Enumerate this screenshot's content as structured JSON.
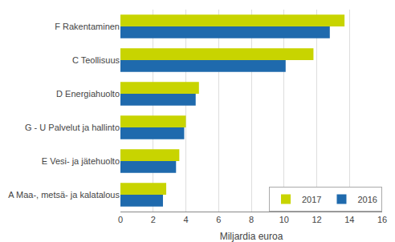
{
  "chart_data": {
    "type": "bar",
    "orientation": "horizontal",
    "categories": [
      "F Rakentaminen",
      "C Teollisuus",
      "D Energiahuolto",
      "G - U Palvelut ja hallinto",
      "E Vesi- ja jätehuolto",
      "A Maa-, metsä- ja kalatalous"
    ],
    "series": [
      {
        "name": "2017",
        "color": "#c8d400",
        "values": [
          13.7,
          11.8,
          4.8,
          4.0,
          3.6,
          2.8
        ]
      },
      {
        "name": "2016",
        "color": "#1f6aad",
        "values": [
          12.8,
          10.1,
          4.6,
          3.9,
          3.4,
          2.6
        ]
      }
    ],
    "xlabel": "Miljardia euroa",
    "xlim": [
      0,
      16
    ],
    "xticks": [
      0,
      2,
      4,
      6,
      8,
      10,
      12,
      14,
      16
    ],
    "grid": true,
    "legend": "lower right"
  }
}
